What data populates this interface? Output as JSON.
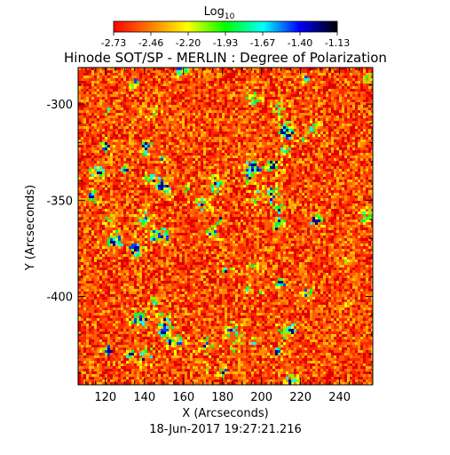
{
  "chart_data": {
    "type": "heatmap",
    "title": "Hinode SOT/SP - MERLIN : Degree of Polarization",
    "colorbar": {
      "label": "Log",
      "label_subscript": "10",
      "range": [
        -2.73,
        -1.13
      ],
      "tick_labels": [
        "-2.73",
        "-2.46",
        "-2.20",
        "-1.93",
        "-1.67",
        "-1.40",
        "-1.13"
      ],
      "colors": [
        "#ff0000",
        "#ff8000",
        "#ffff00",
        "#00ff00",
        "#00ffff",
        "#0000ff",
        "#000000"
      ]
    },
    "xlabel": "X (Arcseconds)",
    "ylabel": "Y (Arcseconds)",
    "xlim": [
      106,
      257
    ],
    "ylim": [
      -446,
      -281
    ],
    "x_ticks": [
      "120",
      "140",
      "160",
      "180",
      "200",
      "220",
      "240"
    ],
    "y_ticks": [
      "-300",
      "-350",
      "-400"
    ],
    "timestamp": "18-Jun-2017 19:27:21.216",
    "field_description_colors": {
      "background_level": "#ff5a00",
      "accent_low": "#e01000",
      "accent_mid": "#ffd000"
    }
  }
}
